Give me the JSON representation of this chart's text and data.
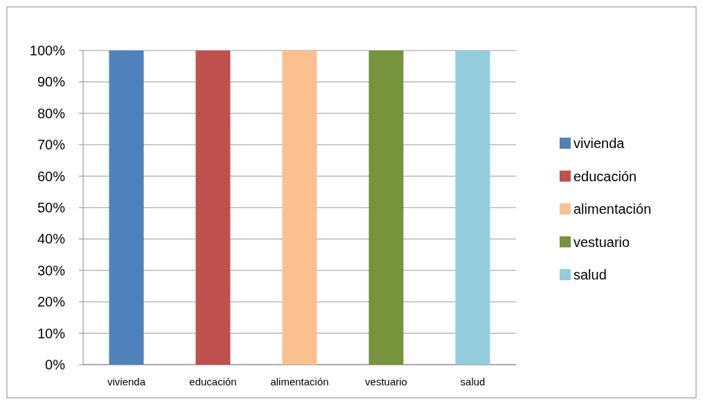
{
  "chart_data": {
    "type": "bar",
    "categories": [
      "vivienda",
      "educación",
      "alimentación",
      "vestuario",
      "salud"
    ],
    "series": [
      {
        "name": "vivienda",
        "color": "#4f81bd",
        "values": [
          100,
          null,
          null,
          null,
          null
        ]
      },
      {
        "name": "educación",
        "color": "#c0504d",
        "values": [
          null,
          100,
          null,
          null,
          null
        ]
      },
      {
        "name": "alimentación",
        "color": "#fac090",
        "values": [
          null,
          null,
          100,
          null,
          null
        ]
      },
      {
        "name": "vestuario",
        "color": "#77933c",
        "values": [
          null,
          null,
          null,
          100,
          null
        ]
      },
      {
        "name": "salud",
        "color": "#93cddd",
        "values": [
          null,
          null,
          null,
          null,
          100
        ]
      }
    ],
    "ylim": [
      0,
      100
    ],
    "yticks": [
      {
        "value": 0,
        "label": "0%"
      },
      {
        "value": 10,
        "label": "10%"
      },
      {
        "value": 20,
        "label": "20%"
      },
      {
        "value": 30,
        "label": "30%"
      },
      {
        "value": 40,
        "label": "40%"
      },
      {
        "value": 50,
        "label": "50%"
      },
      {
        "value": 60,
        "label": "60%"
      },
      {
        "value": 70,
        "label": "70%"
      },
      {
        "value": 80,
        "label": "80%"
      },
      {
        "value": 90,
        "label": "90%"
      },
      {
        "value": 100,
        "label": "100%"
      }
    ],
    "grid": "y",
    "legend": "right"
  }
}
